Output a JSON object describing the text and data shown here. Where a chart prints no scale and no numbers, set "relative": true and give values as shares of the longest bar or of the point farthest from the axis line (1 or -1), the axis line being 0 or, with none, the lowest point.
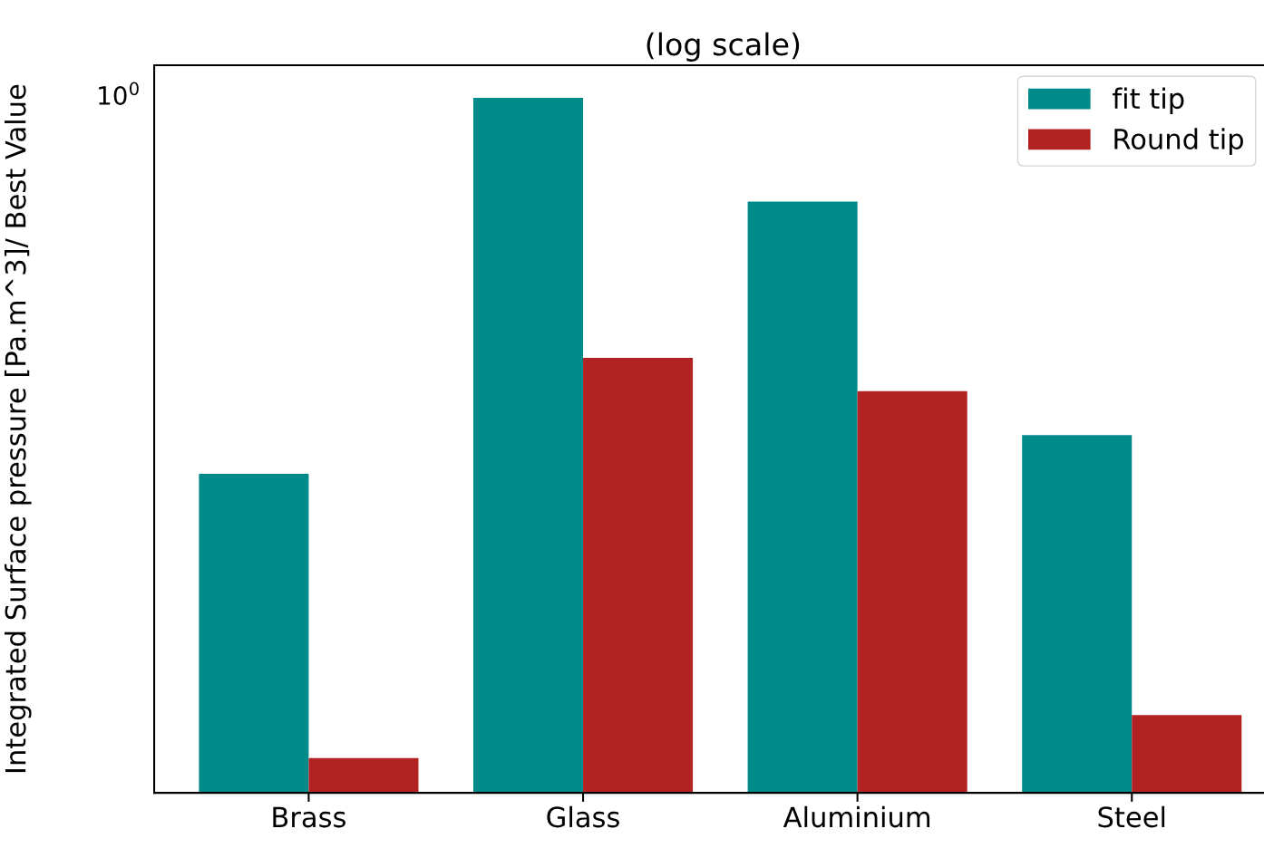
{
  "chart_data": {
    "type": "bar",
    "title": "(log scale)",
    "ylabel": "Integrated Surface pressure [Pa.m^3]/ Best Value",
    "categories": [
      "Brass",
      "Glass",
      "Aluminium",
      "Steel"
    ],
    "relative": true,
    "annotations": [
      "10$^{0}$"
    ],
    "series": [
      {
        "name": "fit tip",
        "color": "#008b8b",
        "values": [
          0.459,
          1,
          0.851,
          0.515
        ]
      },
      {
        "name": "Round tip",
        "color": "#b22222",
        "values": [
          0.05,
          0.626,
          0.578,
          0.112
        ]
      }
    ],
    "legend": "top right",
    "grid": false
  }
}
